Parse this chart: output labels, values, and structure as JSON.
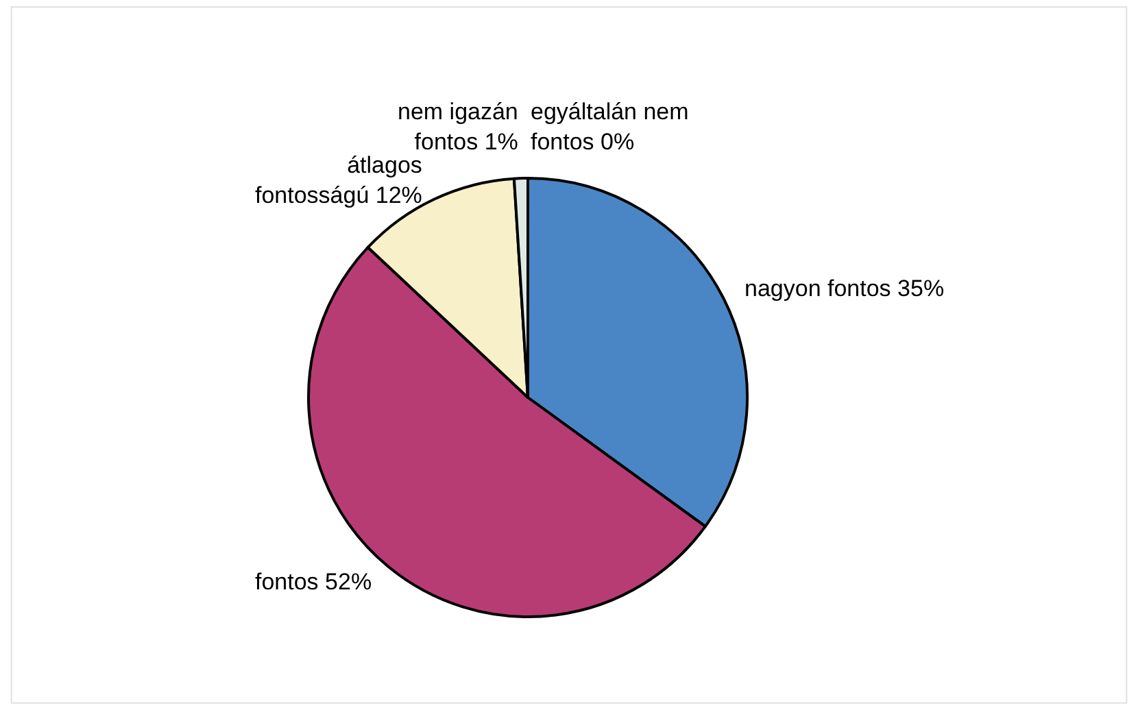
{
  "chart_data": {
    "type": "pie",
    "categories": [
      "nagyon fontos",
      "fontos",
      "átlagos fontosságú",
      "nem igazán fontos",
      "egyáltalán nem fontos"
    ],
    "values": [
      35,
      52,
      12,
      1,
      0
    ],
    "value_labels": [
      "35%",
      "52%",
      "12%",
      "1%",
      "0%"
    ],
    "colors": [
      "#4a86c5",
      "#b83c74",
      "#f8f0c8",
      "#dfe9e4",
      "#9fd0e6"
    ],
    "legend": false
  }
}
